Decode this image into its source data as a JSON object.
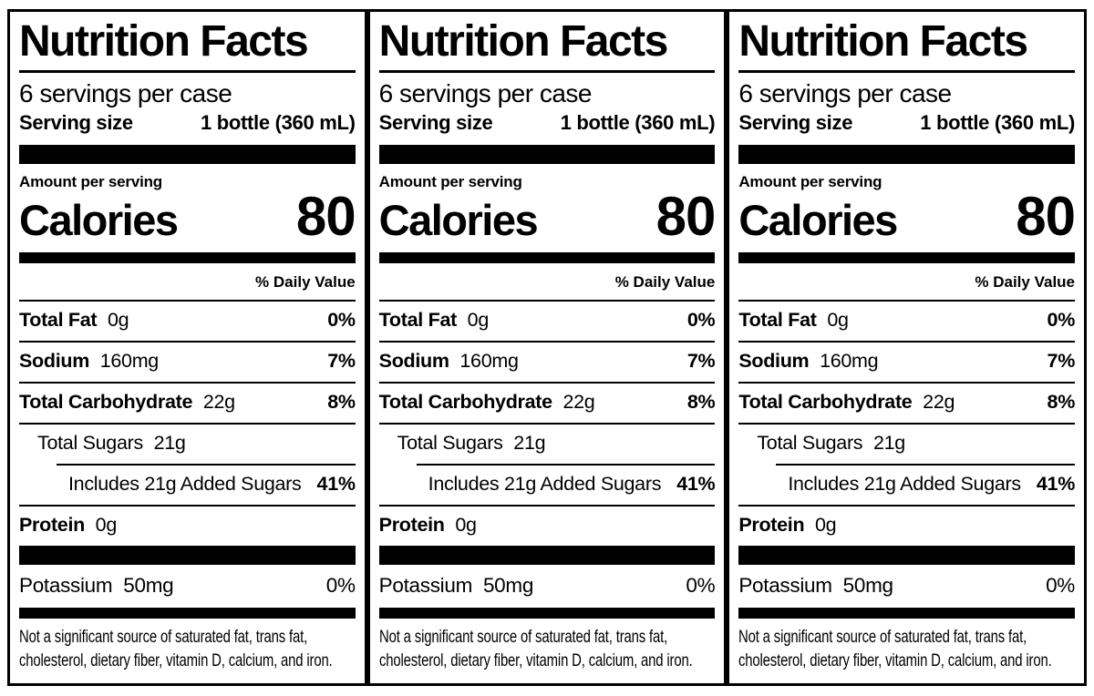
{
  "panel_count": 3,
  "colors": {
    "text": "#000000",
    "background": "#ffffff",
    "rule": "#000000"
  },
  "label": {
    "title": "Nutrition Facts",
    "servings_per_container": "6 servings per case",
    "serving_size_label": "Serving size",
    "serving_size_value": "1 bottle (360 mL)",
    "amount_per_serving_label": "Amount per serving",
    "calories_label": "Calories",
    "calories_value": "80",
    "daily_value_header": "% Daily Value",
    "nutrients": [
      {
        "name": "Total Fat",
        "amount": "0g",
        "daily_value": "0%"
      },
      {
        "name": "Sodium",
        "amount": "160mg",
        "daily_value": "7%"
      },
      {
        "name": "Total Carbohydrate",
        "amount": "22g",
        "daily_value": "8%"
      },
      {
        "name": "Total Sugars",
        "amount": "21g",
        "daily_value": ""
      },
      {
        "name": "Includes 21g Added Sugars",
        "amount": "",
        "daily_value": "41%"
      },
      {
        "name": "Protein",
        "amount": "0g",
        "daily_value": ""
      }
    ],
    "potassium": {
      "name": "Potassium",
      "amount": "50mg",
      "daily_value": "0%"
    },
    "footnote": "Not a significant source of saturated fat, trans fat, cholesterol, dietary fiber, vitamin D, calcium, and iron."
  }
}
